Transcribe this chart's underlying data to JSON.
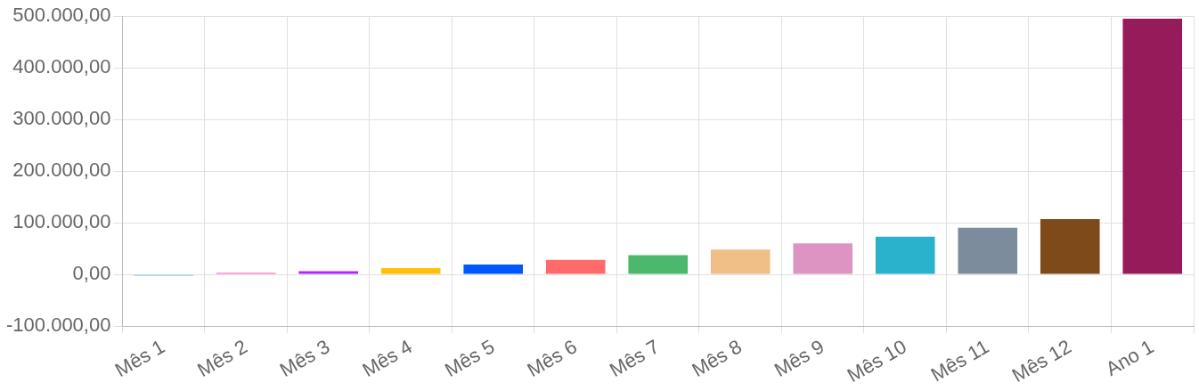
{
  "chart_data": {
    "type": "bar",
    "categories": [
      "Mês 1",
      "Mês 2",
      "Mês 3",
      "Mês 4",
      "Mês 5",
      "Mês 6",
      "Mês 7",
      "Mês 8",
      "Mês 9",
      "Mês 10",
      "Mês 11",
      "Mês 12",
      "Ano 1"
    ],
    "values": [
      -3000,
      3000,
      6000,
      12000,
      19000,
      28000,
      37000,
      48000,
      60000,
      73000,
      90000,
      107000,
      495000
    ],
    "colors": [
      "#9ad0f5",
      "#ff6ec7",
      "#b026ff",
      "#ffc107",
      "#0057ff",
      "#ff6b6b",
      "#4cb86b",
      "#f0be87",
      "#dd94c2",
      "#2ab1cc",
      "#7d8c9c",
      "#7f4a1a",
      "#961b5a"
    ],
    "ylim": [
      -100000,
      500000
    ],
    "yticks": [
      {
        "value": -100000,
        "label": "-100.000,00"
      },
      {
        "value": 0,
        "label": "0,00"
      },
      {
        "value": 100000,
        "label": "100.000,00"
      },
      {
        "value": 200000,
        "label": "200.000,00"
      },
      {
        "value": 300000,
        "label": "300.000,00"
      },
      {
        "value": 400000,
        "label": "400.000,00"
      },
      {
        "value": 500000,
        "label": "500.000,00"
      }
    ],
    "grid": true,
    "legend": false
  }
}
